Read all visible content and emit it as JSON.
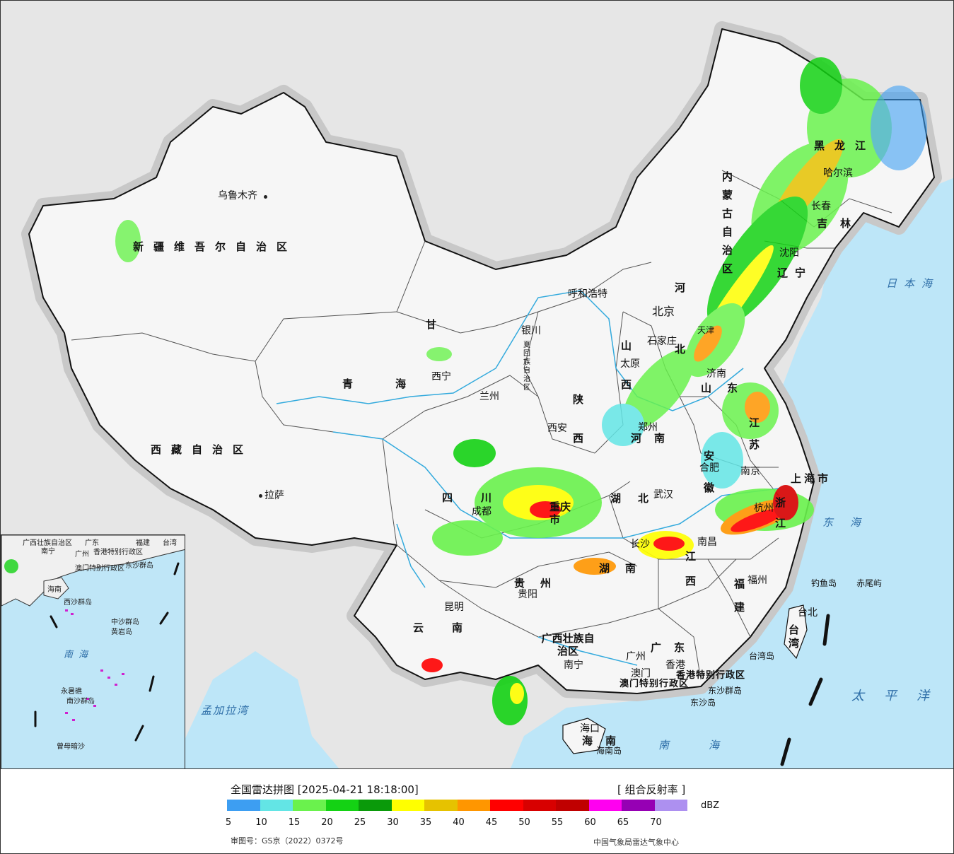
{
  "map": {
    "provinces": [
      {
        "id": "xinjiang",
        "label": "新疆维吾尔自治区"
      },
      {
        "id": "xizang",
        "label": "西藏自治区"
      },
      {
        "id": "qinghai",
        "label": "青海"
      },
      {
        "id": "neimenggu",
        "label": "内蒙古自治区"
      },
      {
        "id": "heilongjiang",
        "label": "黑龙江"
      },
      {
        "id": "jilin",
        "label": "吉林"
      },
      {
        "id": "liaoning",
        "label": "辽宁"
      },
      {
        "id": "gansu",
        "label": "甘"
      },
      {
        "id": "sichuan",
        "label": "四川"
      },
      {
        "id": "yunnan",
        "label": "云南"
      },
      {
        "id": "guizhou",
        "label": "贵州"
      },
      {
        "id": "shaanxi",
        "label": "陕西"
      },
      {
        "id": "shanxi",
        "label": "山西"
      },
      {
        "id": "hebei",
        "label": "河北"
      },
      {
        "id": "henan",
        "label": "河南"
      },
      {
        "id": "hubei",
        "label": "湖北"
      },
      {
        "id": "hunan",
        "label": "湖南"
      },
      {
        "id": "jiangxi",
        "label": "江西"
      },
      {
        "id": "fujian",
        "label": "福建"
      },
      {
        "id": "guangdong",
        "label": "广东"
      },
      {
        "id": "guangxi",
        "label": "广西壮族自治区"
      },
      {
        "id": "hainan",
        "label": "海南"
      },
      {
        "id": "shandong",
        "label": "山东"
      },
      {
        "id": "jiangsu",
        "label": "江苏"
      },
      {
        "id": "zhejiang",
        "label": "浙江"
      },
      {
        "id": "anhui",
        "label": "安徽"
      },
      {
        "id": "taiwan",
        "label": "台湾"
      },
      {
        "id": "shanghai",
        "label": "上海市"
      },
      {
        "id": "chongqing",
        "label": "重庆市"
      },
      {
        "id": "hongkong",
        "label": "香港特别行政区"
      },
      {
        "id": "macau",
        "label": "澳门特别行政区"
      }
    ],
    "cities": [
      {
        "id": "urumqi",
        "label": "乌鲁木齐"
      },
      {
        "id": "lhasa",
        "label": "拉萨"
      },
      {
        "id": "xining",
        "label": "西宁"
      },
      {
        "id": "lanzhou",
        "label": "兰州"
      },
      {
        "id": "yinchuan",
        "label": "银川"
      },
      {
        "id": "hohhot",
        "label": "呼和浩特"
      },
      {
        "id": "beijing",
        "label": "北京"
      },
      {
        "id": "tianjin",
        "label": "天津"
      },
      {
        "id": "shijiazhuang",
        "label": "石家庄"
      },
      {
        "id": "taiyuan",
        "label": "太原"
      },
      {
        "id": "jinan",
        "label": "济南"
      },
      {
        "id": "zhengzhou",
        "label": "郑州"
      },
      {
        "id": "xian",
        "label": "西安"
      },
      {
        "id": "chengdu",
        "label": "成都"
      },
      {
        "id": "guiyang",
        "label": "贵阳"
      },
      {
        "id": "kunming",
        "label": "昆明"
      },
      {
        "id": "nanning",
        "label": "南宁"
      },
      {
        "id": "guangzhou",
        "label": "广州"
      },
      {
        "id": "hk",
        "label": "香港"
      },
      {
        "id": "mo",
        "label": "澳门"
      },
      {
        "id": "haikou",
        "label": "海口"
      },
      {
        "id": "changsha",
        "label": "长沙"
      },
      {
        "id": "nanchang",
        "label": "南昌"
      },
      {
        "id": "wuhan",
        "label": "武汉"
      },
      {
        "id": "hefei",
        "label": "合肥"
      },
      {
        "id": "nanjing",
        "label": "南京"
      },
      {
        "id": "hangzhou",
        "label": "杭州"
      },
      {
        "id": "fuzhou",
        "label": "福州"
      },
      {
        "id": "taibei",
        "label": "台北"
      },
      {
        "id": "shenyang",
        "label": "沈阳"
      },
      {
        "id": "changchun",
        "label": "长春"
      },
      {
        "id": "harbin",
        "label": "哈尔滨"
      }
    ],
    "islands": [
      {
        "id": "diaoyu",
        "label": "钓鱼岛"
      },
      {
        "id": "chiwei",
        "label": "赤尾屿"
      },
      {
        "id": "taiwan-island",
        "label": "台湾岛"
      },
      {
        "id": "dongsha-islands",
        "label": "东沙群岛"
      },
      {
        "id": "dongsha",
        "label": "东沙岛"
      },
      {
        "id": "hainan-island",
        "label": "海南岛"
      }
    ],
    "seas": [
      {
        "id": "japan-sea",
        "label": "日本海"
      },
      {
        "id": "east-sea",
        "label": "东海"
      },
      {
        "id": "pacific",
        "label": "太平洋"
      },
      {
        "id": "south-sea",
        "label": "南海"
      },
      {
        "id": "bengal",
        "label": "孟加拉湾"
      }
    ],
    "ningxia": "宁夏回族自治区",
    "ningxia_label": "夏回族自治区",
    "ningxia_prefix": "宁"
  },
  "inset": {
    "labels": [
      {
        "id": "gx",
        "label": "广西壮族自治区"
      },
      {
        "id": "gd",
        "label": "广东"
      },
      {
        "id": "fj",
        "label": "福建"
      },
      {
        "id": "tw",
        "label": "台湾"
      },
      {
        "id": "nn",
        "label": "南宁"
      },
      {
        "id": "gz",
        "label": "广州"
      },
      {
        "id": "hkl",
        "label": "香港特别行政区"
      },
      {
        "id": "mol",
        "label": "澳门特别行政区"
      },
      {
        "id": "dsq",
        "label": "东沙群岛"
      },
      {
        "id": "hn",
        "label": "海南"
      },
      {
        "id": "xsq",
        "label": "西沙群岛"
      },
      {
        "id": "zsq",
        "label": "中沙群岛"
      },
      {
        "id": "hyd",
        "label": "黄岩岛"
      },
      {
        "id": "nhsea",
        "label": "南海"
      },
      {
        "id": "nsq",
        "label": "南沙群岛"
      },
      {
        "id": "yxj",
        "label": "永暑礁"
      },
      {
        "id": "zmas",
        "label": "曾母暗沙"
      }
    ]
  },
  "legend": {
    "title": "全国雷达拼图 [2025-04-21 18:18:00]",
    "product": "[ 组合反射率 ]",
    "unit": "dBZ",
    "ticks": [
      "5",
      "10",
      "15",
      "20",
      "25",
      "30",
      "35",
      "40",
      "45",
      "50",
      "55",
      "60",
      "65",
      "70"
    ],
    "colors": [
      "#3d9ef2",
      "#63e5e5",
      "#6af24d",
      "#14d214",
      "#0a9a0a",
      "#ffff00",
      "#e6c200",
      "#ff9600",
      "#ff0000",
      "#d80000",
      "#c00000",
      "#ff00f0",
      "#9600b4",
      "#ad90f0"
    ],
    "approval": "审图号：GS京（2022）0372号",
    "agency": "中国气象局雷达气象中心"
  }
}
